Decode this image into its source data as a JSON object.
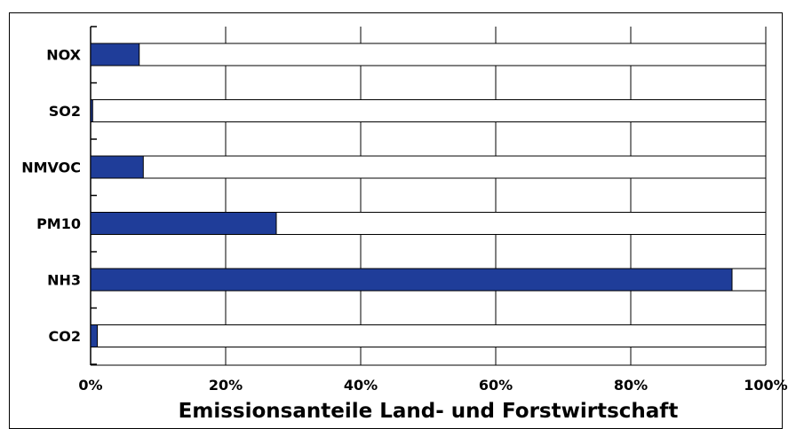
{
  "chart_data": {
    "type": "bar",
    "orientation": "horizontal",
    "title": "",
    "xlabel": "Emissionsanteile Land- und Forstwirtschaft",
    "ylabel": "",
    "categories": [
      "NOX",
      "SO2",
      "NMVOC",
      "PM10",
      "NH3",
      "CO2"
    ],
    "values": [
      7.2,
      0.3,
      7.8,
      27.5,
      95,
      1
    ],
    "xlim": [
      0,
      100
    ],
    "xticks": [
      "0%",
      "20%",
      "40%",
      "60%",
      "80%",
      "100%"
    ],
    "grid": true,
    "stacked_remainder": true,
    "colors": {
      "bar": "#1f3d99",
      "remainder": "#ffffff",
      "grid": "#000000"
    }
  }
}
